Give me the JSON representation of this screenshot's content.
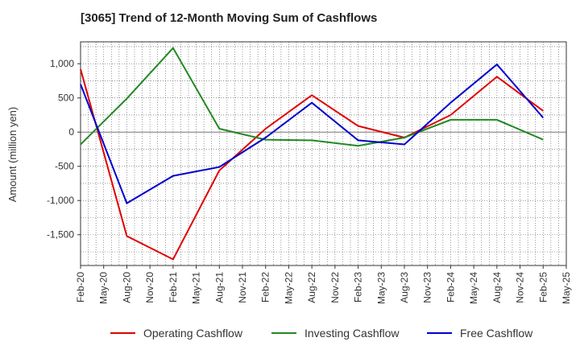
{
  "chart_data": {
    "type": "line",
    "title": "[3065]  Trend of 12-Month Moving Sum of Cashflows",
    "xlabel": "",
    "ylabel": "Amount (million yen)",
    "ylim": [
      -1950,
      1320
    ],
    "yticks": [
      1000,
      500,
      0,
      -500,
      -1000,
      -1500
    ],
    "ytick_labels": [
      "1,000",
      "500",
      "0",
      "-500",
      "-1,000",
      "-1,500"
    ],
    "xtick_labels": [
      "Feb-20",
      "May-20",
      "Aug-20",
      "Nov-20",
      "Feb-21",
      "May-21",
      "Aug-21",
      "Nov-21",
      "Feb-22",
      "May-22",
      "Aug-22",
      "Nov-22",
      "Feb-23",
      "May-23",
      "Aug-23",
      "Nov-23",
      "Feb-24",
      "May-24",
      "Aug-24",
      "Nov-24",
      "Feb-25",
      "May-25"
    ],
    "x": [
      "Feb-20",
      "Aug-20",
      "Feb-21",
      "Aug-21",
      "Feb-22",
      "Aug-22",
      "Feb-23",
      "Aug-23",
      "Feb-24",
      "Aug-24",
      "Feb-25"
    ],
    "grid": true,
    "legend_position": "bottom",
    "series": [
      {
        "name": "Operating Cashflow",
        "color": "#e00000",
        "values": [
          920,
          -1520,
          -1860,
          -560,
          50,
          540,
          90,
          -80,
          250,
          810,
          310
        ]
      },
      {
        "name": "Investing Cashflow",
        "color": "#228822",
        "values": [
          -180,
          490,
          1230,
          50,
          -110,
          -120,
          -200,
          -80,
          180,
          180,
          -110
        ]
      },
      {
        "name": "Free Cashflow",
        "color": "#0000cc",
        "values": [
          700,
          -1040,
          -640,
          -510,
          -80,
          430,
          -120,
          -180,
          430,
          990,
          210
        ]
      }
    ]
  }
}
